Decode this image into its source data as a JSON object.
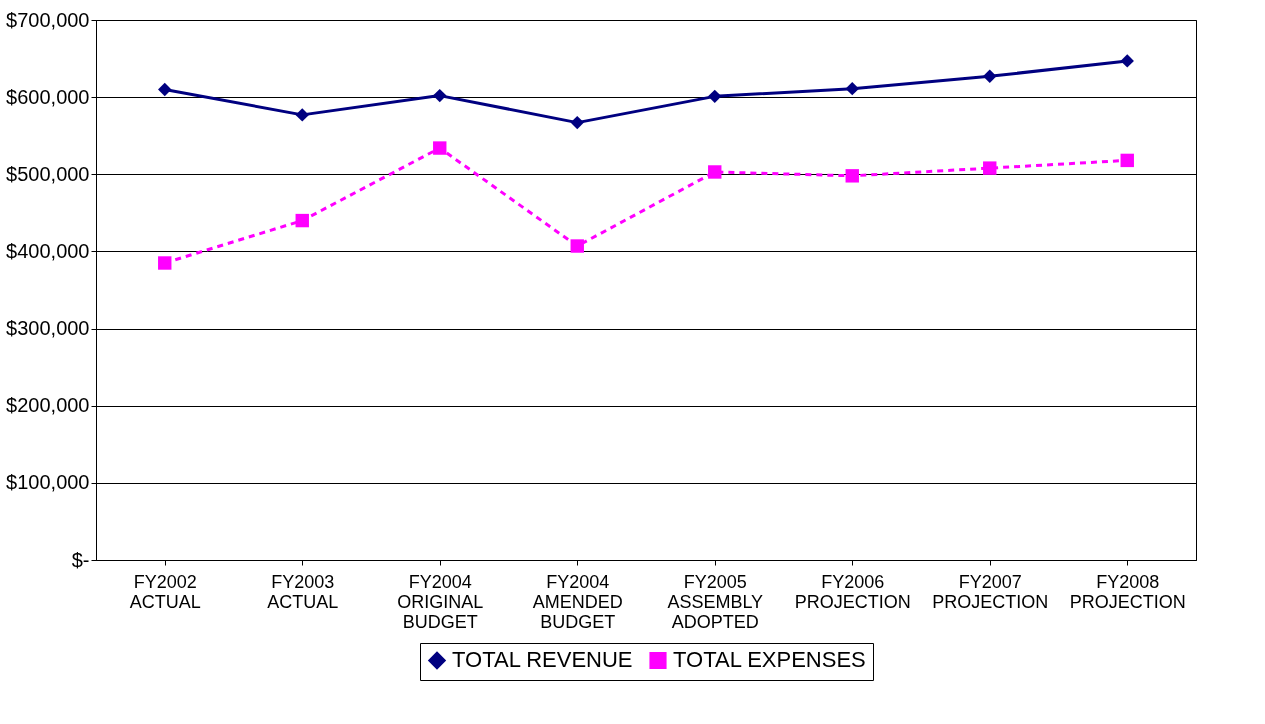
{
  "chart_data": {
    "type": "line",
    "categories": [
      "FY2002\nACTUAL",
      "FY2003\nACTUAL",
      "FY2004\nORIGINAL\nBUDGET",
      "FY2004\nAMENDED\nBUDGET",
      "FY2005\nASSEMBLY\nADOPTED",
      "FY2006\nPROJECTION",
      "FY2007\nPROJECTION",
      "FY2008\nPROJECTION"
    ],
    "series": [
      {
        "name": "TOTAL REVENUE",
        "color": "#000080",
        "marker": "diamond",
        "line_style": "solid",
        "values": [
          610000,
          577000,
          602000,
          567000,
          601000,
          611000,
          627000,
          647000
        ]
      },
      {
        "name": "TOTAL EXPENSES",
        "color": "#ff00ff",
        "marker": "square",
        "line_style": "dashed",
        "values": [
          385000,
          440000,
          534000,
          407000,
          503000,
          498000,
          508000,
          518000
        ]
      }
    ],
    "ylim": [
      0,
      700000
    ],
    "yticks": [
      {
        "value": 0,
        "label": "$-"
      },
      {
        "value": 100000,
        "label": "$100,000"
      },
      {
        "value": 200000,
        "label": "$200,000"
      },
      {
        "value": 300000,
        "label": "$300,000"
      },
      {
        "value": 400000,
        "label": "$400,000"
      },
      {
        "value": 500000,
        "label": "$500,000"
      },
      {
        "value": 600000,
        "label": "$600,000"
      },
      {
        "value": 700000,
        "label": "$700,000"
      }
    ],
    "grid": "y",
    "legend": "bottom"
  }
}
